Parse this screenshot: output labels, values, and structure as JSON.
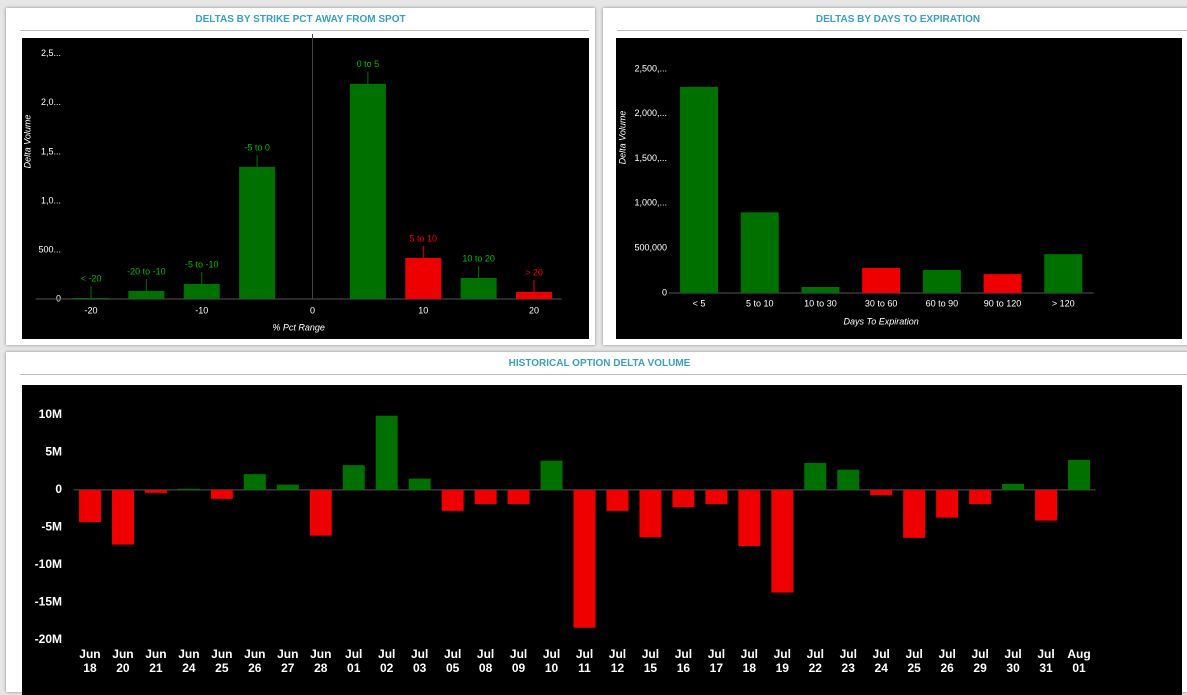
{
  "chart_data": [
    {
      "type": "bar",
      "title": "DELTAS BY STRIKE PCT AWAY FROM SPOT",
      "xlabel": "% Pct Range",
      "ylabel": "Delta Volume",
      "x": [
        -20,
        -15,
        -10,
        -5,
        5,
        10,
        15,
        20
      ],
      "labels": [
        "< -20",
        "-20 to -10",
        "-5 to -10",
        "-5 to 0",
        "0 to 5",
        "5 to 10",
        "10 to 20",
        "> 20"
      ],
      "values": [
        10000,
        82000,
        153000,
        1347000,
        2194000,
        418000,
        214000,
        71000
      ],
      "colors": [
        "#007100",
        "#007100",
        "#007100",
        "#007100",
        "#007100",
        "#ee0000",
        "#007100",
        "#ee0000"
      ],
      "xlim": [
        -25,
        22.5
      ],
      "xticks": [
        -20,
        -10,
        0,
        10,
        20
      ],
      "x_zero_line": true,
      "ylim": [
        0,
        2600000
      ],
      "yticks": [
        0,
        {
          "value": 500000,
          "label": "500..."
        },
        {
          "value": 1000000,
          "label": "1,0..."
        },
        {
          "value": 1500000,
          "label": "1,5..."
        },
        {
          "value": 2000000,
          "label": "2,0..."
        },
        {
          "value": 2500000,
          "label": "2,5..."
        }
      ]
    },
    {
      "type": "bar",
      "title": "DELTAS BY DAYS TO EXPIRATION",
      "xlabel": "Days To Expiration",
      "ylabel": "Delta Volume",
      "categories": [
        "< 5",
        "5 to 10",
        "10 to 30",
        "30 to 60",
        "60 to 90",
        "90 to 120",
        "> 120"
      ],
      "values": [
        2300000,
        900000,
        67000,
        279000,
        256000,
        211000,
        433000
      ],
      "colors": [
        "#007100",
        "#007100",
        "#007100",
        "#ee0000",
        "#007100",
        "#ee0000",
        "#007100"
      ],
      "ylim": [
        0,
        2800000
      ],
      "yticks": [
        0,
        {
          "value": 500000,
          "label": "500,000"
        },
        {
          "value": 1000000,
          "label": "1,000,..."
        },
        {
          "value": 1500000,
          "label": "1,500,..."
        },
        {
          "value": 2000000,
          "label": "2,000,..."
        },
        {
          "value": 2500000,
          "label": "2,500,..."
        }
      ]
    },
    {
      "type": "bar",
      "title": "HISTORICAL OPTION DELTA VOLUME",
      "categories": [
        "Jun 18",
        "Jun 20",
        "Jun 21",
        "Jun 24",
        "Jun 25",
        "Jun 26",
        "Jun 27",
        "Jun 28",
        "Jul 01",
        "Jul 02",
        "Jul 03",
        "Jul 05",
        "Jul 08",
        "Jul 09",
        "Jul 10",
        "Jul 11",
        "Jul 12",
        "Jul 15",
        "Jul 16",
        "Jul 17",
        "Jul 18",
        "Jul 19",
        "Jul 22",
        "Jul 23",
        "Jul 24",
        "Jul 25",
        "Jul 26",
        "Jul 29",
        "Jul 30",
        "Jul 31",
        "Aug 01"
      ],
      "values": [
        -4300000,
        -7300000,
        -400000,
        150000,
        -1200000,
        2100000,
        700000,
        -6100000,
        3300000,
        9900000,
        1500000,
        -2800000,
        -1900000,
        -1900000,
        3900000,
        -18400000,
        -2800000,
        -6300000,
        -2300000,
        -1900000,
        -7500000,
        -13700000,
        3600000,
        2700000,
        -700000,
        -6400000,
        -3700000,
        -1900000,
        800000,
        -4100000,
        4000000
      ],
      "positive_color": "#007100",
      "negative_color": "#ee0000",
      "ylim": [
        -20700000,
        14000000
      ],
      "yticks": [
        {
          "value": -20000000,
          "label": "-20M"
        },
        {
          "value": -15000000,
          "label": "-15M"
        },
        {
          "value": -10000000,
          "label": "-10M"
        },
        {
          "value": -5000000,
          "label": "-5M"
        },
        0,
        {
          "value": 5000000,
          "label": "5M"
        },
        {
          "value": 10000000,
          "label": "10M"
        }
      ]
    }
  ]
}
